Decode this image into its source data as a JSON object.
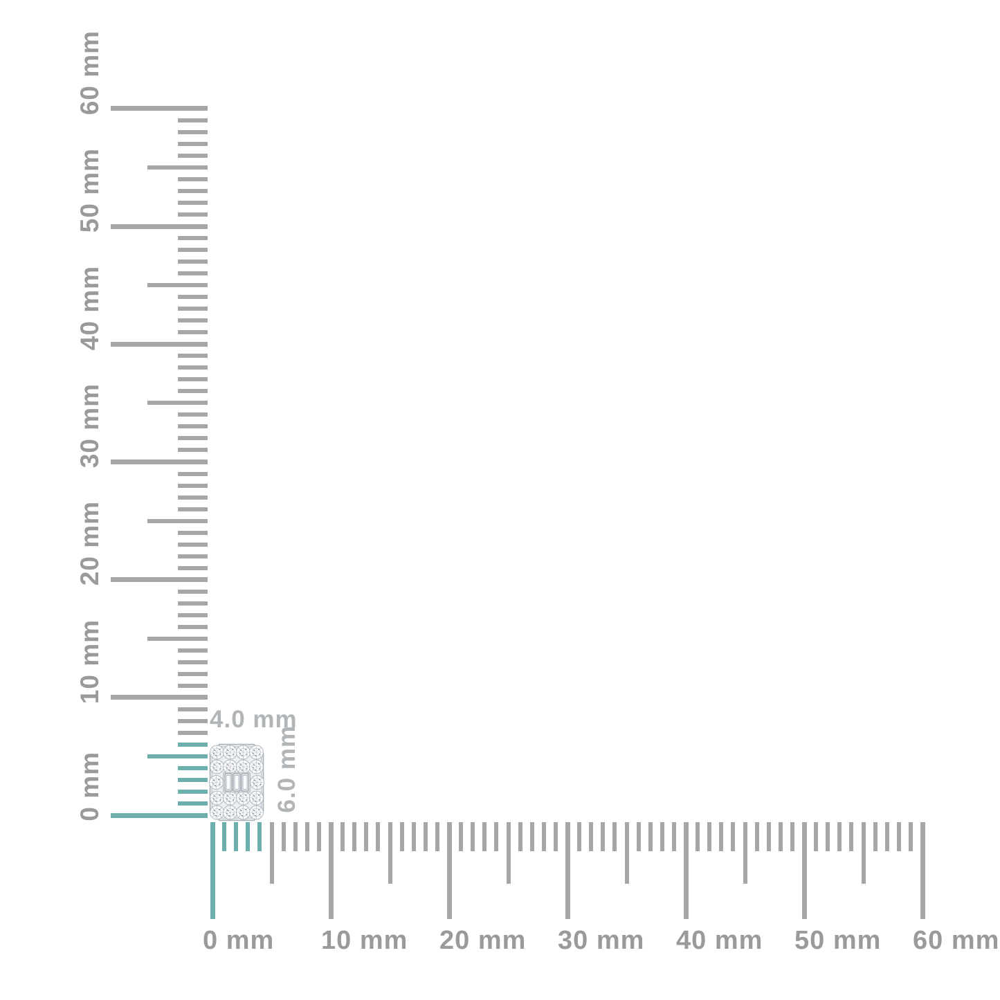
{
  "scene": {
    "description": "jewelry-size-guide",
    "background": "#ffffff"
  },
  "colors": {
    "tick_gray": "#a6a6a6",
    "tick_teal": "#6dafac",
    "ruler_label_gray": "#9a9a9a",
    "dim_label_gray": "#b2b5b7",
    "metal_frame": "#e7e9ec",
    "stone_fill": "#f8fafc"
  },
  "vertical_ruler": {
    "unit": "mm",
    "min_mm": 0,
    "max_mm": 60,
    "major_step_mm": 10,
    "half_step_mm": 5,
    "minor_step_mm": 1,
    "highlight_extent_mm": 6,
    "labels": [
      "0 mm",
      "10 mm",
      "20 mm",
      "30 mm",
      "40 mm",
      "50 mm",
      "60 mm"
    ]
  },
  "horizontal_ruler": {
    "unit": "mm",
    "min_mm": 0,
    "max_mm": 60,
    "major_step_mm": 10,
    "half_step_mm": 5,
    "minor_step_mm": 1,
    "highlight_extent_mm": 4,
    "labels": [
      "0 mm",
      "10 mm",
      "20 mm",
      "30 mm",
      "40 mm",
      "50 mm",
      "60 mm"
    ]
  },
  "item": {
    "kind": "diamond-cluster-pendant",
    "width_label": "4.0 mm",
    "height_label": "6.0 mm"
  }
}
